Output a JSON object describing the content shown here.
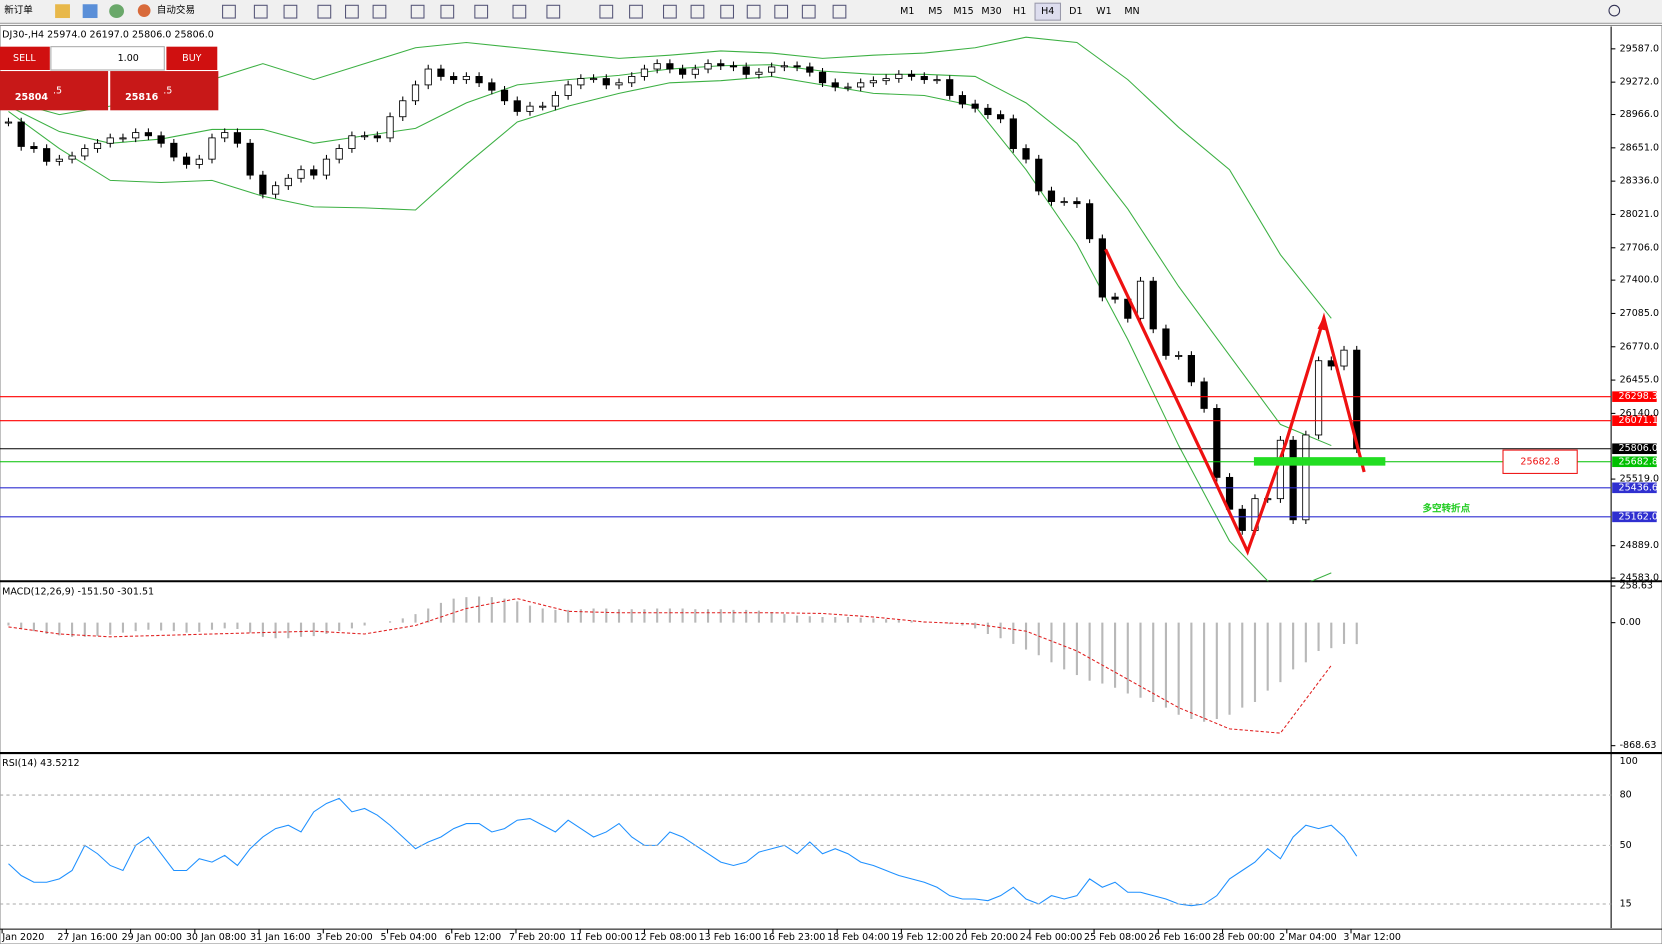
{
  "toolbar": {
    "new_order": "新订单",
    "auto_trading": "自动交易",
    "timeframes": [
      "M1",
      "M5",
      "M15",
      "M30",
      "H1",
      "H4",
      "D1",
      "W1",
      "MN"
    ],
    "active_timeframe": "H4"
  },
  "trade_panel": {
    "sell": "SELL",
    "buy": "BUY",
    "lots": "1.00",
    "sell_price": "25804",
    "sell_pips": ".5",
    "buy_price": "25816",
    "buy_pips": ".5"
  },
  "chart": {
    "header": "DJ30-,H4  25974.0 26197.0 25806.0 25806.0",
    "ylim": [
      24553,
      29798
    ],
    "price_ticks": [
      {
        "value": 29587,
        "label": "29587.0"
      },
      {
        "value": 29272,
        "label": "29272.0"
      },
      {
        "value": 28966,
        "label": "28966.0"
      },
      {
        "value": 28651,
        "label": "28651.0"
      },
      {
        "value": 28336,
        "label": "28336.0"
      },
      {
        "value": 28021,
        "label": "28021.0"
      },
      {
        "value": 27706,
        "label": "27706.0"
      },
      {
        "value": 27400,
        "label": "27400.0"
      },
      {
        "value": 27085,
        "label": "27085.0"
      },
      {
        "value": 26770,
        "label": "26770.0"
      },
      {
        "value": 26455,
        "label": "26455.0"
      },
      {
        "value": 26140,
        "label": "26140.0"
      },
      {
        "value": 25519,
        "label": "25519.0"
      },
      {
        "value": 24889,
        "label": "24889.0"
      },
      {
        "value": 24583,
        "label": "24583.0"
      }
    ],
    "time_labels": [
      "Jan 2020",
      "27 Jan 16:00",
      "29 Jan 00:00",
      "30 Jan 08:00",
      "31 Jan 16:00",
      "3 Feb 20:00",
      "5 Feb 04:00",
      "6 Feb 12:00",
      "7 Feb 20:00",
      "11 Feb 00:00",
      "12 Feb 08:00",
      "13 Feb 16:00",
      "16 Feb 23:00",
      "18 Feb 04:00",
      "19 Feb 12:00",
      "20 Feb 20:00",
      "24 Feb 00:00",
      "25 Feb 08:00",
      "26 Feb 16:00",
      "28 Feb 00:00",
      "2 Mar 04:00",
      "3 Mar 12:00"
    ],
    "close": [
      28895,
      28664,
      28644,
      28523,
      28544,
      28574,
      28644,
      28694,
      28745,
      28745,
      28795,
      28765,
      28694,
      28564,
      28494,
      28544,
      28745,
      28795,
      28694,
      28393,
      28213,
      28293,
      28363,
      28444,
      28393,
      28544,
      28644,
      28765,
      28765,
      28745,
      28945,
      29096,
      29246,
      29396,
      29326,
      29296,
      29326,
      29266,
      29196,
      29096,
      28995,
      29045,
      29045,
      29146,
      29246,
      29306,
      29306,
      29246,
      29266,
      29326,
      29396,
      29447,
      29396,
      29346,
      29396,
      29447,
      29427,
      29416,
      29346,
      29366,
      29416,
      29427,
      29416,
      29366,
      29266,
      29226,
      29226,
      29266,
      29286,
      29306,
      29346,
      29326,
      29296,
      29296,
      29146,
      29065,
      29025,
      28965,
      28925,
      28644,
      28544,
      28243,
      28143,
      28143,
      28123,
      27791,
      27240,
      27220,
      27039,
      27390,
      26939,
      26688,
      26688,
      26438,
      26187,
      25535,
      25234,
      25033,
      25334,
      25334,
      25886,
      25134,
      25936,
      26638,
      26588,
      26738,
      25806
    ],
    "bb_upper": [
      29096,
      28965,
      29045,
      29146,
      29296,
      29447,
      29296,
      29447,
      29597,
      29647,
      29597,
      29547,
      29497,
      29527,
      29567,
      29547,
      29497,
      29527,
      29547,
      29597,
      29697,
      29647,
      29296,
      28845,
      28444,
      27641,
      27039
    ],
    "bb_middle": [
      29045,
      28805,
      28694,
      28734,
      28825,
      28825,
      28694,
      28765,
      28835,
      29076,
      29246,
      29296,
      29336,
      29396,
      29427,
      29437,
      29376,
      29346,
      29346,
      29326,
      29076,
      28694,
      28073,
      27340,
      26688,
      26036,
      25836
    ],
    "bb_lower": [
      28995,
      28644,
      28343,
      28323,
      28343,
      28193,
      28093,
      28083,
      28063,
      28494,
      28895,
      29045,
      29166,
      29266,
      29286,
      29326,
      29246,
      29166,
      29146,
      29045,
      28444,
      27742,
      26839,
      25836,
      24933,
      24431,
      24632
    ],
    "levels": [
      {
        "value": 26298.3,
        "color": "#ff0000"
      },
      {
        "value": 26071.1,
        "color": "#ff0000"
      },
      {
        "value": {
          "value": 25806,
          "label": "25806.0"
        },
        "color": "#000000"
      },
      {
        "value": 25682.8,
        "color": "#00c000"
      },
      {
        "value": 25436.6,
        "color": "#2f2fd0"
      },
      {
        "value": {
          "value": 25162,
          "label": "25162.0"
        },
        "color": "#2f2fd0"
      }
    ],
    "callout": "25682.8",
    "note": "多空转折点"
  },
  "macd": {
    "header": "MACD(12,26,9) -151.50 -301.51",
    "ylim": [
      -906,
      270
    ],
    "ticks": [
      258.63,
      {
        "value": 0,
        "label": "0.00"
      },
      -868.63
    ],
    "histogram": [
      -20,
      -40,
      -60,
      -80,
      -90,
      -100,
      -100,
      -95,
      -85,
      -70,
      -60,
      -50,
      -55,
      -60,
      -70,
      -65,
      -50,
      -40,
      -45,
      -70,
      -100,
      -110,
      -110,
      -100,
      -95,
      -80,
      -60,
      -40,
      -20,
      0,
      10,
      30,
      60,
      100,
      140,
      170,
      180,
      185,
      180,
      170,
      150,
      120,
      100,
      90,
      90,
      95,
      100,
      100,
      95,
      95,
      95,
      100,
      100,
      100,
      95,
      95,
      95,
      90,
      90,
      85,
      75,
      60,
      50,
      45,
      40,
      40,
      40,
      35,
      30,
      25,
      20,
      15,
      5,
      0,
      -10,
      -20,
      -40,
      -80,
      -110,
      -150,
      -190,
      -230,
      -280,
      -330,
      -370,
      -410,
      -430,
      -460,
      -500,
      -530,
      -560,
      -600,
      -650,
      -680,
      -700,
      -680,
      -650,
      -600,
      -560,
      -480,
      -420,
      -330,
      -280,
      -200,
      -180,
      -150,
      -151.5
    ],
    "signal": [
      -30,
      -80,
      -100,
      -90,
      -80,
      -70,
      -60,
      -80,
      -20,
      100,
      170,
      80,
      70,
      70,
      70,
      70,
      65,
      40,
      5,
      -10,
      -60,
      -200,
      -400,
      -600,
      -750,
      -780,
      -301.51
    ]
  },
  "rsi": {
    "header": "RSI(14) 43.5212",
    "ylim": [
      0,
      100
    ],
    "ticks": [
      100,
      80,
      50,
      15
    ],
    "values": [
      39,
      32,
      28,
      28,
      30,
      35,
      50,
      45,
      38,
      35,
      50,
      55,
      45,
      35,
      35,
      42,
      40,
      44,
      38,
      48,
      55,
      60,
      62,
      58,
      70,
      75,
      78,
      70,
      72,
      68,
      62,
      55,
      48,
      52,
      55,
      60,
      63,
      63,
      58,
      60,
      65,
      66,
      62,
      58,
      65,
      60,
      55,
      58,
      63,
      55,
      50,
      50,
      58,
      55,
      50,
      45,
      40,
      38,
      40,
      46,
      48,
      50,
      45,
      52,
      45,
      48,
      45,
      40,
      38,
      35,
      32,
      30,
      28,
      25,
      20,
      18,
      18,
      17,
      20,
      25,
      18,
      15,
      20,
      18,
      20,
      30,
      25,
      28,
      22,
      22,
      20,
      18,
      15,
      14,
      15,
      20,
      30,
      35,
      40,
      48,
      42,
      55,
      62,
      60,
      62,
      55,
      43.5212
    ]
  }
}
